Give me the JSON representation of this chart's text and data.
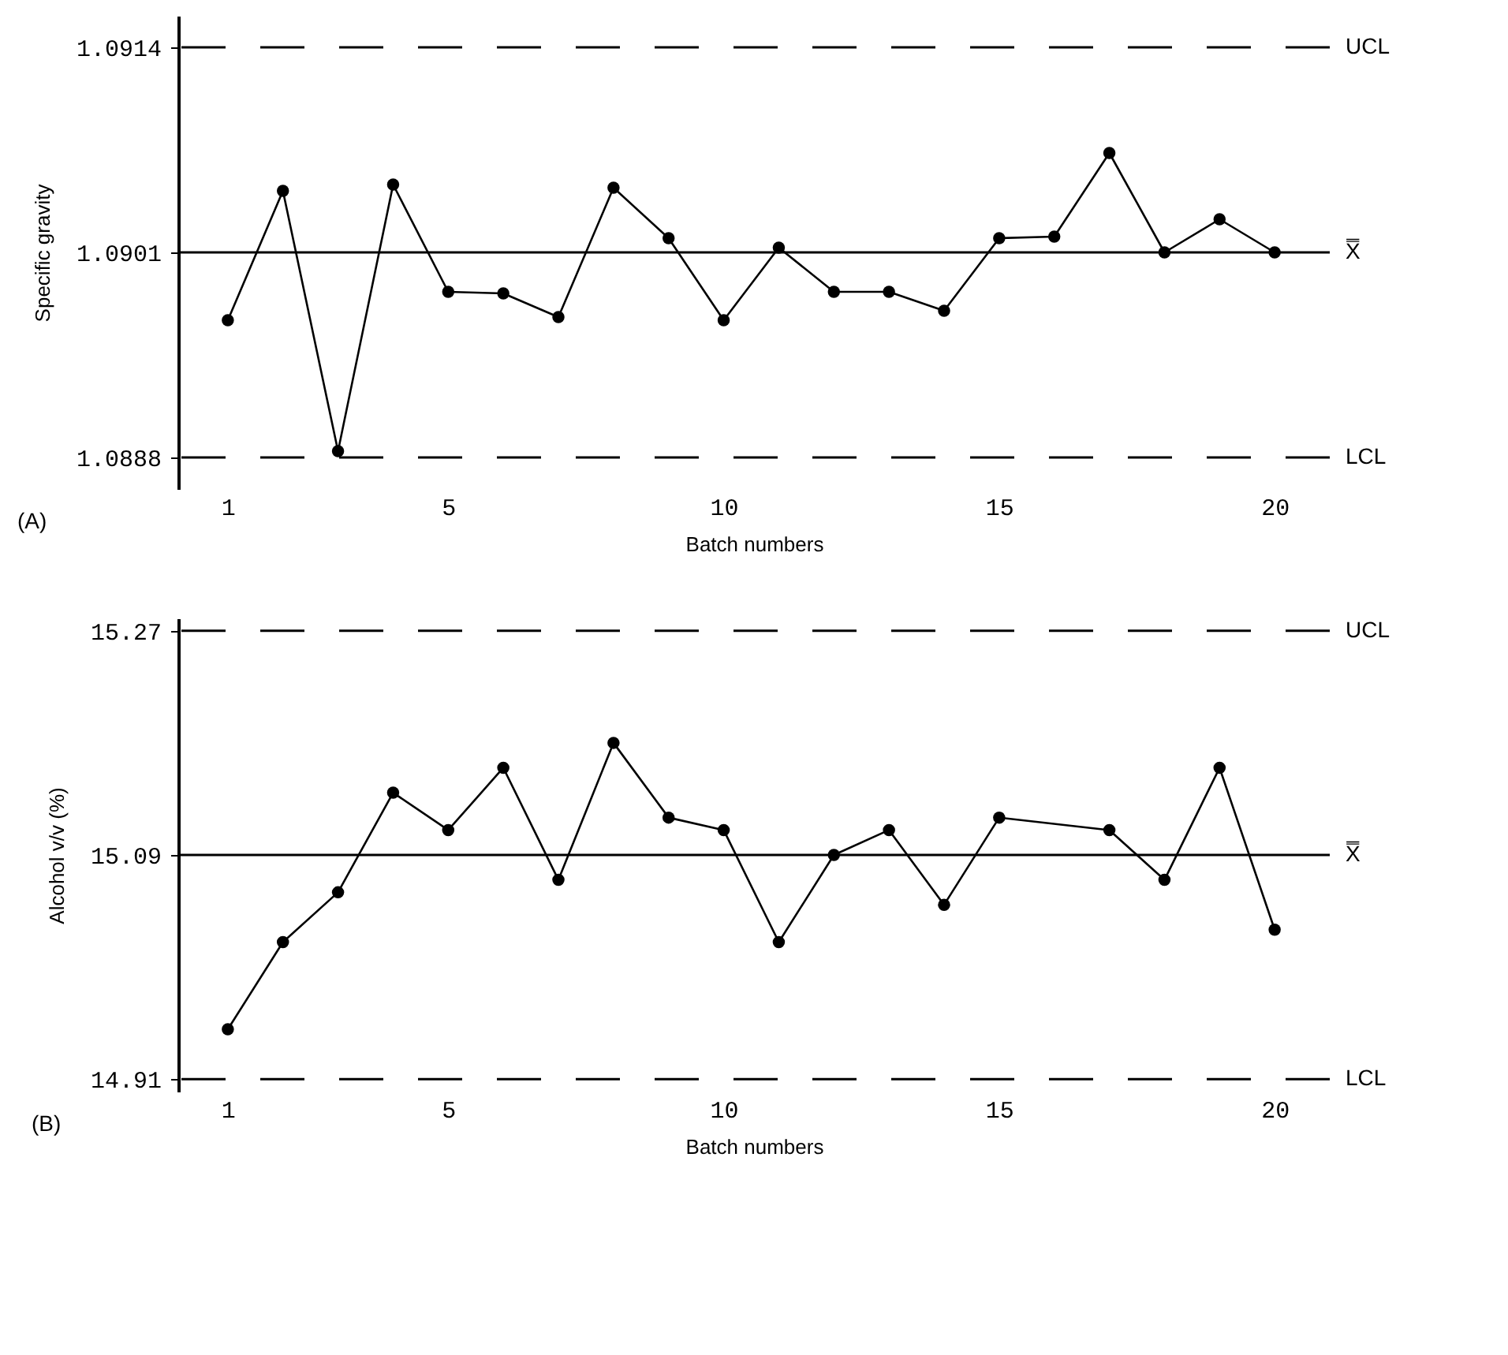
{
  "chart_data": [
    {
      "type": "line",
      "annotations": [
        "(A)"
      ],
      "xlabel": "Batch numbers",
      "ylabel": "Specific gravity",
      "xlim": [
        0.1,
        21
      ],
      "xticks": [
        1,
        5,
        10,
        15,
        20
      ],
      "ylim": [
        1.0886,
        1.0916
      ],
      "yticks": [
        1.0888,
        1.0901,
        1.0914
      ],
      "grid": false,
      "marker": "circle",
      "line_style": "solid",
      "series": [
        {
          "color": "#000000",
          "x": [
            1,
            2,
            3,
            4,
            5,
            6,
            7,
            8,
            9,
            10,
            11,
            12,
            13,
            14,
            15,
            16,
            17,
            18,
            19,
            20
          ],
          "values": [
            1.08967,
            1.09049,
            1.08884,
            1.09053,
            1.08985,
            1.08984,
            1.08969,
            1.09051,
            1.09019,
            1.08967,
            1.09013,
            1.08985,
            1.08985,
            1.08973,
            1.09019,
            1.0902,
            1.09073,
            1.0901,
            1.09031,
            1.0901
          ]
        }
      ],
      "ref_lines": [
        {
          "axis": "y",
          "value": 1.0914,
          "label": "UCL",
          "color": "#000000",
          "line_style": "dashed"
        },
        {
          "axis": "y",
          "value": 1.0901,
          "label": "X̿",
          "color": "#000000",
          "line_style": "solid"
        },
        {
          "axis": "y",
          "value": 1.0888,
          "label": "LCL",
          "color": "#000000",
          "line_style": "dashed"
        }
      ]
    },
    {
      "type": "line",
      "annotations": [
        "(B)"
      ],
      "xlabel": "Batch numbers",
      "ylabel": "Alcohol v/v (%)",
      "xlim": [
        0.1,
        21
      ],
      "xticks": [
        1,
        5,
        10,
        15,
        20
      ],
      "ylim": [
        14.9,
        15.28
      ],
      "yticks": [
        14.91,
        15.09,
        15.27
      ],
      "grid": false,
      "marker": "circle",
      "line_style": "solid",
      "series": [
        {
          "color": "#000000",
          "x": [
            1,
            2,
            3,
            4,
            5,
            6,
            7,
            8,
            9,
            10,
            11,
            12,
            13,
            14,
            15,
            17,
            18,
            19,
            20
          ],
          "values": [
            14.95,
            15.02,
            15.06,
            15.14,
            15.11,
            15.16,
            15.07,
            15.18,
            15.12,
            15.11,
            15.02,
            15.09,
            15.11,
            15.05,
            15.12,
            15.11,
            15.07,
            15.16,
            15.03
          ]
        }
      ],
      "ref_lines": [
        {
          "axis": "y",
          "value": 15.27,
          "label": "UCL",
          "color": "#000000",
          "line_style": "dashed"
        },
        {
          "axis": "y",
          "value": 15.09,
          "label": "X̿",
          "color": "#000000",
          "line_style": "solid"
        },
        {
          "axis": "y",
          "value": 14.91,
          "label": "LCL",
          "color": "#000000",
          "line_style": "dashed"
        }
      ]
    }
  ]
}
